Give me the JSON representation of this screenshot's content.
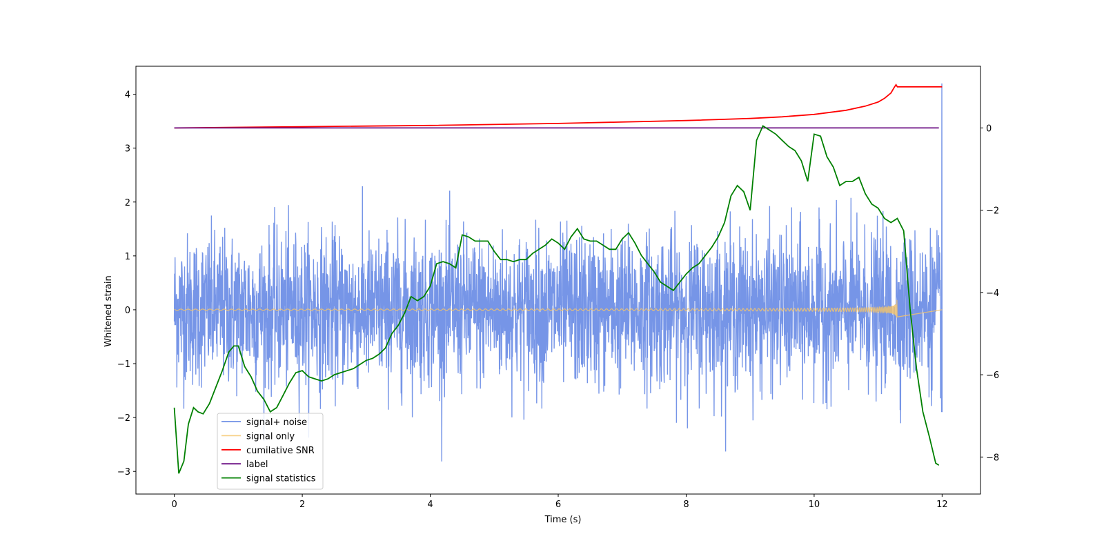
{
  "chart_data": {
    "type": "line",
    "xlabel": "Time (s)",
    "ylabel": "Whitened strain",
    "xlim": [
      -0.6,
      12.6
    ],
    "ylim_left": [
      -3.42,
      4.52
    ],
    "ylim_right": [
      -8.9,
      1.5
    ],
    "x_ticks": [
      0,
      2,
      4,
      6,
      8,
      10,
      12
    ],
    "x_tick_labels": [
      "0",
      "2",
      "4",
      "6",
      "8",
      "10",
      "12"
    ],
    "y_ticks_left": [
      -3,
      -2,
      -1,
      0,
      1,
      2,
      3,
      4
    ],
    "y_tick_labels_left": [
      "−3",
      "−2",
      "−1",
      "0",
      "1",
      "2",
      "3",
      "4"
    ],
    "y_ticks_right": [
      -8,
      -6,
      -4,
      -2,
      0
    ],
    "y_tick_labels_right": [
      "−8",
      "−6",
      "−4",
      "−2",
      "0"
    ],
    "grid": false,
    "legend_position": "lower-left",
    "series": [
      {
        "name": "signal+ noise",
        "axis": "left",
        "color": "#6f8fe6",
        "style": "noise",
        "x_range": [
          0,
          12
        ],
        "std": 0.7,
        "peak_max": 2.7,
        "peak_min": -3.05,
        "end_spike": 4.2
      },
      {
        "name": "signal only",
        "axis": "left",
        "color": "#f5c46a",
        "style": "chirp",
        "x_range": [
          0,
          11.3
        ],
        "max_amplitude": 0.35
      },
      {
        "name": "cumilative SNR",
        "axis": "right",
        "color": "#ff0000",
        "x": [
          0,
          2,
          4,
          6,
          8,
          9,
          9.5,
          10,
          10.5,
          10.8,
          11.0,
          11.1,
          11.2,
          11.25,
          11.28,
          11.3,
          12.0
        ],
        "y": [
          0.0,
          0.03,
          0.06,
          0.11,
          0.18,
          0.23,
          0.27,
          0.33,
          0.43,
          0.53,
          0.63,
          0.72,
          0.85,
          0.98,
          1.05,
          1.0,
          1.0
        ]
      },
      {
        "name": "label",
        "axis": "right",
        "color": "#6a0d83",
        "x": [
          0,
          11.95
        ],
        "y": [
          0.0,
          0.0
        ]
      },
      {
        "name": "signal statistics",
        "axis": "right",
        "color": "#008000",
        "x": [
          0,
          0.07,
          0.15,
          0.22,
          0.3,
          0.37,
          0.45,
          0.55,
          0.65,
          0.75,
          0.85,
          0.93,
          1.0,
          1.1,
          1.2,
          1.3,
          1.4,
          1.5,
          1.6,
          1.7,
          1.8,
          1.9,
          2.0,
          2.1,
          2.2,
          2.3,
          2.4,
          2.5,
          2.6,
          2.7,
          2.8,
          2.9,
          3.0,
          3.1,
          3.2,
          3.3,
          3.4,
          3.5,
          3.6,
          3.7,
          3.8,
          3.9,
          4.0,
          4.1,
          4.2,
          4.3,
          4.4,
          4.5,
          4.6,
          4.7,
          4.8,
          4.9,
          5.0,
          5.1,
          5.2,
          5.3,
          5.4,
          5.5,
          5.6,
          5.7,
          5.8,
          5.9,
          6.0,
          6.1,
          6.2,
          6.3,
          6.4,
          6.5,
          6.6,
          6.7,
          6.8,
          6.9,
          7.0,
          7.1,
          7.2,
          7.3,
          7.4,
          7.5,
          7.6,
          7.7,
          7.8,
          7.9,
          8.0,
          8.1,
          8.2,
          8.3,
          8.4,
          8.5,
          8.6,
          8.7,
          8.8,
          8.9,
          9.0,
          9.1,
          9.2,
          9.3,
          9.4,
          9.5,
          9.6,
          9.7,
          9.8,
          9.9,
          10.0,
          10.1,
          10.2,
          10.3,
          10.4,
          10.5,
          10.6,
          10.7,
          10.8,
          10.9,
          11.0,
          11.1,
          11.2,
          11.3,
          11.4,
          11.5,
          11.6,
          11.7,
          11.8,
          11.9,
          11.95
        ],
        "y": [
          -6.8,
          -8.4,
          -8.1,
          -7.2,
          -6.8,
          -6.9,
          -6.95,
          -6.7,
          -6.3,
          -5.9,
          -5.45,
          -5.3,
          -5.3,
          -5.8,
          -6.05,
          -6.4,
          -6.6,
          -6.9,
          -6.8,
          -6.5,
          -6.2,
          -5.95,
          -5.9,
          -6.05,
          -6.1,
          -6.15,
          -6.1,
          -6.0,
          -5.95,
          -5.9,
          -5.85,
          -5.75,
          -5.65,
          -5.6,
          -5.5,
          -5.35,
          -5.0,
          -4.8,
          -4.5,
          -4.1,
          -4.2,
          -4.1,
          -3.85,
          -3.3,
          -3.25,
          -3.3,
          -3.4,
          -2.6,
          -2.65,
          -2.75,
          -2.75,
          -2.75,
          -3.0,
          -3.2,
          -3.2,
          -3.25,
          -3.2,
          -3.2,
          -3.05,
          -2.95,
          -2.85,
          -2.7,
          -2.8,
          -2.95,
          -2.65,
          -2.45,
          -2.7,
          -2.75,
          -2.75,
          -2.85,
          -2.95,
          -2.95,
          -2.7,
          -2.55,
          -2.8,
          -3.1,
          -3.3,
          -3.5,
          -3.75,
          -3.85,
          -3.95,
          -3.75,
          -3.55,
          -3.4,
          -3.3,
          -3.1,
          -2.9,
          -2.65,
          -2.3,
          -1.65,
          -1.4,
          -1.55,
          -2.0,
          -0.3,
          0.05,
          -0.05,
          -0.15,
          -0.3,
          -0.45,
          -0.55,
          -0.8,
          -1.3,
          -0.15,
          -0.2,
          -0.7,
          -0.95,
          -1.4,
          -1.3,
          -1.3,
          -1.2,
          -1.6,
          -1.85,
          -1.95,
          -2.2,
          -2.3,
          -2.2,
          -2.5,
          -4.4,
          -5.85,
          -6.9,
          -7.5,
          -8.15,
          -8.2
        ]
      }
    ]
  }
}
